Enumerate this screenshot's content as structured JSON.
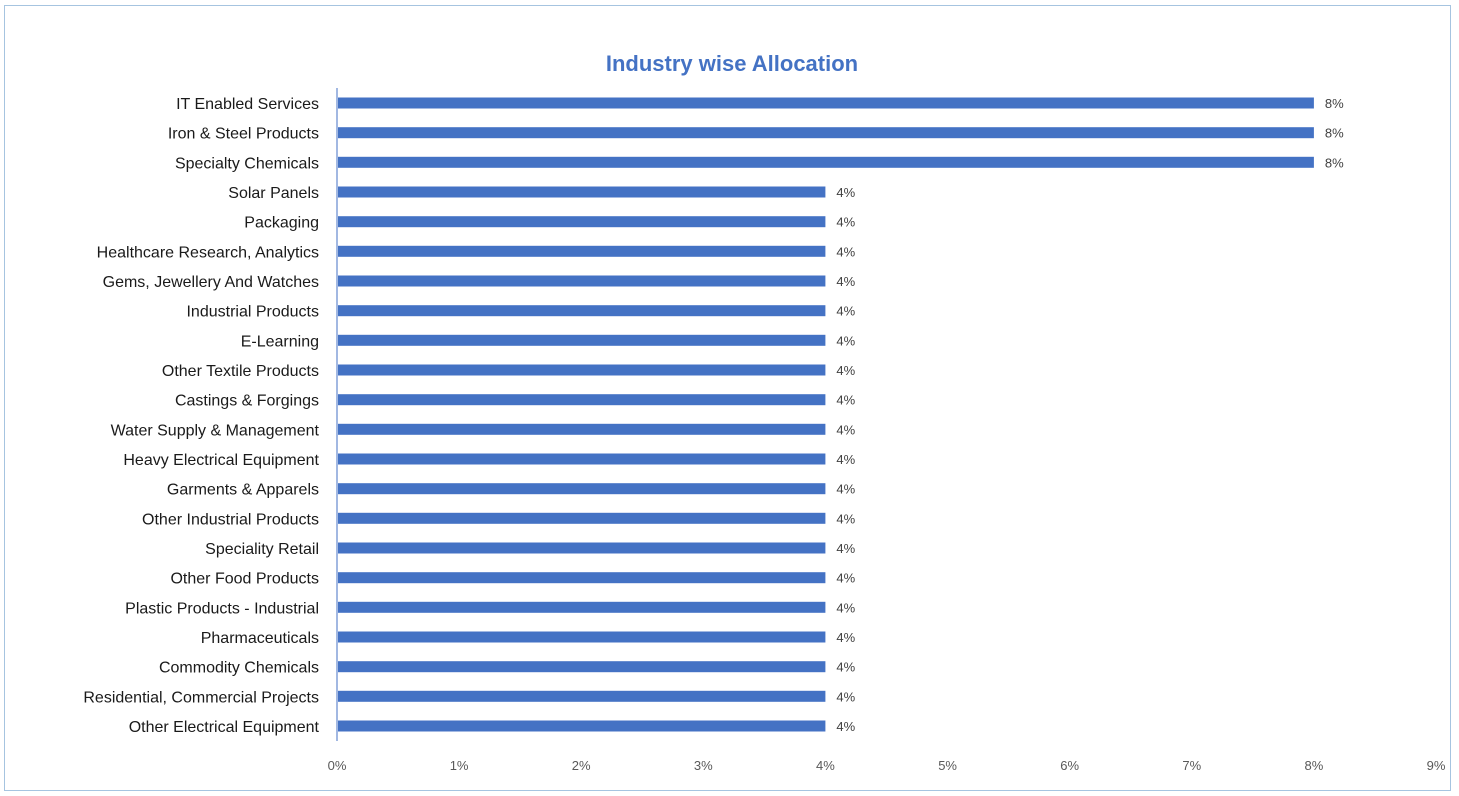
{
  "chart_data": {
    "type": "bar",
    "orientation": "horizontal",
    "title": "Industry wise Allocation",
    "xlabel": "",
    "ylabel": "",
    "xlim": [
      0,
      9
    ],
    "x_ticks": [
      "0%",
      "1%",
      "2%",
      "3%",
      "4%",
      "5%",
      "6%",
      "7%",
      "8%",
      "9%"
    ],
    "grid": false,
    "legend": "none",
    "bar_color": "#4472c4",
    "categories": [
      "IT Enabled Services",
      "Iron & Steel Products",
      "Specialty Chemicals",
      "Solar Panels",
      "Packaging",
      "Healthcare Research, Analytics",
      "Gems, Jewellery And Watches",
      "Industrial Products",
      "E-Learning",
      "Other Textile Products",
      "Castings & Forgings",
      "Water Supply & Management",
      "Heavy Electrical Equipment",
      "Garments & Apparels",
      "Other Industrial Products",
      "Speciality Retail",
      "Other Food Products",
      "Plastic Products - Industrial",
      "Pharmaceuticals",
      "Commodity Chemicals",
      "Residential, Commercial Projects",
      "Other Electrical Equipment"
    ],
    "values": [
      8,
      8,
      8,
      4,
      4,
      4,
      4,
      4,
      4,
      4,
      4,
      4,
      4,
      4,
      4,
      4,
      4,
      4,
      4,
      4,
      4,
      4
    ],
    "data_labels": [
      "8%",
      "8%",
      "8%",
      "4%",
      "4%",
      "4%",
      "4%",
      "4%",
      "4%",
      "4%",
      "4%",
      "4%",
      "4%",
      "4%",
      "4%",
      "4%",
      "4%",
      "4%",
      "4%",
      "4%",
      "4%",
      "4%"
    ]
  }
}
